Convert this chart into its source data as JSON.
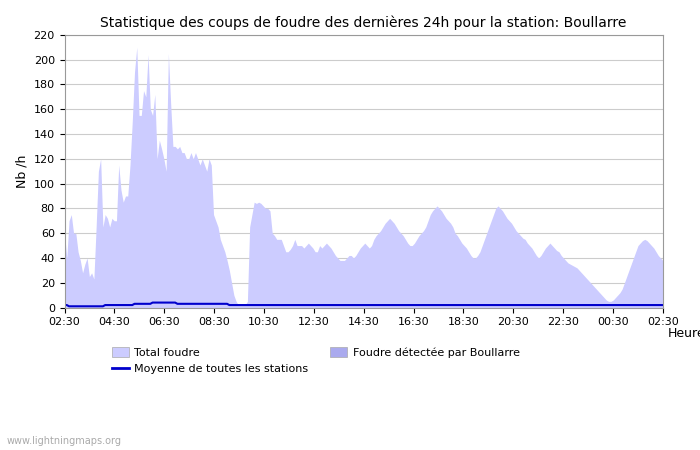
{
  "title": "Statistique des coups de foudre des dernières 24h pour la station: Boullarre",
  "xlabel": "Heure",
  "ylabel": "Nb /h",
  "watermark": "www.lightningmaps.org",
  "ylim": [
    0,
    220
  ],
  "yticks": [
    0,
    20,
    40,
    60,
    80,
    100,
    120,
    140,
    160,
    180,
    200,
    220
  ],
  "xtick_labels": [
    "02:30",
    "04:30",
    "06:30",
    "08:30",
    "10:30",
    "12:30",
    "14:30",
    "16:30",
    "18:30",
    "20:30",
    "22:30",
    "00:30",
    "02:30"
  ],
  "bg_color": "#ffffff",
  "plot_bg_color": "#ffffff",
  "grid_color": "#cccccc",
  "fill_total_color": "#ccccff",
  "fill_local_color": "#aaaaee",
  "line_color": "#0000cc",
  "legend_total": "Total foudre",
  "legend_local": "Foudre détectée par Boullarre",
  "legend_mean": "Moyenne de toutes les stations",
  "total_foudre": [
    60,
    40,
    70,
    75,
    60,
    60,
    45,
    38,
    28,
    35,
    40,
    25,
    28,
    23,
    65,
    110,
    120,
    65,
    75,
    72,
    65,
    72,
    70,
    70,
    115,
    95,
    85,
    90,
    90,
    115,
    150,
    190,
    210,
    155,
    155,
    175,
    170,
    204,
    160,
    155,
    172,
    120,
    135,
    128,
    120,
    110,
    205,
    165,
    130,
    130,
    128,
    130,
    125,
    125,
    120,
    120,
    125,
    120,
    125,
    120,
    115,
    120,
    115,
    110,
    120,
    115,
    75,
    70,
    65,
    55,
    50,
    45,
    38,
    30,
    20,
    10,
    5,
    2,
    2,
    2,
    2,
    5,
    65,
    75,
    85,
    84,
    85,
    84,
    82,
    80,
    80,
    78,
    60,
    58,
    55,
    55,
    55,
    50,
    45,
    45,
    47,
    50,
    55,
    50,
    50,
    50,
    48,
    50,
    52,
    50,
    48,
    45,
    45,
    50,
    48,
    50,
    52,
    50,
    48,
    45,
    42,
    40,
    38,
    38,
    38,
    40,
    42,
    42,
    40,
    42,
    45,
    48,
    50,
    52,
    50,
    48,
    50,
    55,
    58,
    60,
    62,
    65,
    68,
    70,
    72,
    70,
    68,
    65,
    62,
    60,
    58,
    55,
    52,
    50,
    50,
    52,
    55,
    58,
    60,
    62,
    65,
    70,
    75,
    78,
    80,
    82,
    80,
    78,
    75,
    72,
    70,
    68,
    65,
    60,
    58,
    55,
    52,
    50,
    48,
    45,
    42,
    40,
    40,
    42,
    45,
    50,
    55,
    60,
    65,
    70,
    75,
    80,
    82,
    80,
    78,
    75,
    72,
    70,
    68,
    65,
    62,
    60,
    58,
    56,
    55,
    52,
    50,
    48,
    45,
    42,
    40,
    42,
    45,
    48,
    50,
    52,
    50,
    48,
    46,
    45,
    42,
    40,
    38,
    36,
    35,
    34,
    33,
    32,
    30,
    28,
    26,
    24,
    22,
    20,
    18,
    16,
    14,
    12,
    10,
    8,
    6,
    5,
    5,
    6,
    8,
    10,
    12,
    15,
    20,
    25,
    30,
    35,
    40,
    45,
    50,
    52,
    54,
    55,
    54,
    52,
    50,
    48,
    45,
    42,
    40,
    38
  ],
  "local_foudre": [
    0,
    0,
    0,
    0,
    0,
    0,
    0,
    0,
    0,
    0,
    0,
    0,
    0,
    0,
    0,
    0,
    0,
    0,
    0,
    0,
    0,
    0,
    0,
    0,
    0,
    0,
    0,
    0,
    0,
    0,
    0,
    0,
    0,
    0,
    0,
    0,
    0,
    0,
    0,
    0,
    0,
    0,
    0,
    0,
    0,
    0,
    0,
    0,
    0,
    0,
    0,
    0,
    0,
    0,
    0,
    0,
    0,
    0,
    0,
    0,
    0,
    0,
    0,
    0,
    0,
    0,
    0,
    0,
    0,
    0,
    0,
    0,
    0,
    0,
    0,
    0,
    0,
    0,
    0,
    0,
    0,
    0,
    0,
    0,
    0,
    0,
    0,
    0,
    0,
    0,
    0,
    0,
    0,
    0,
    0,
    0,
    0,
    0,
    0,
    0,
    0,
    0,
    0,
    0,
    0,
    0,
    0,
    0,
    0,
    0,
    0,
    0,
    0,
    0,
    0,
    0,
    0,
    0,
    0,
    0,
    0,
    0,
    0,
    0,
    0,
    0,
    0,
    0,
    0,
    0,
    0,
    0,
    0,
    0,
    0,
    0,
    0,
    0,
    0,
    0,
    0,
    0,
    0,
    0,
    0,
    0,
    0,
    0,
    0,
    0,
    0,
    0,
    0,
    0,
    0,
    0,
    0,
    0,
    0,
    0,
    0,
    0,
    0,
    0,
    0,
    0,
    0,
    0,
    0,
    0,
    0,
    0,
    0,
    0,
    0,
    0,
    0,
    0,
    0,
    0,
    0,
    0,
    0,
    0,
    0,
    0,
    0,
    0,
    0,
    0,
    0,
    0,
    0,
    0,
    0,
    0,
    0,
    0,
    0,
    0,
    0,
    0,
    0,
    0,
    0,
    0,
    0,
    0,
    0,
    0,
    0,
    0,
    0,
    0,
    0,
    0,
    0,
    0,
    0,
    0,
    0,
    0,
    0,
    0,
    0,
    0,
    0,
    0,
    0,
    0,
    0,
    0,
    0,
    0,
    0,
    0,
    0,
    0,
    0,
    0,
    0,
    0,
    0,
    0,
    0,
    0,
    0,
    0,
    0,
    0,
    0,
    0,
    0,
    0,
    0,
    0,
    0,
    0,
    0,
    0,
    0,
    0,
    0,
    0,
    0,
    0
  ],
  "mean_line": [
    2,
    2,
    1,
    1,
    1,
    1,
    1,
    1,
    1,
    1,
    1,
    1,
    1,
    1,
    1,
    1,
    1,
    1,
    2,
    2,
    2,
    2,
    2,
    2,
    2,
    2,
    2,
    2,
    2,
    2,
    2,
    3,
    3,
    3,
    3,
    3,
    3,
    3,
    3,
    4,
    4,
    4,
    4,
    4,
    4,
    4,
    4,
    4,
    4,
    4,
    3,
    3,
    3,
    3,
    3,
    3,
    3,
    3,
    3,
    3,
    3,
    3,
    3,
    3,
    3,
    3,
    3,
    3,
    3,
    3,
    3,
    3,
    3,
    2,
    2,
    2,
    2,
    2,
    2,
    2,
    2,
    2,
    2,
    2,
    2,
    2,
    2,
    2,
    2,
    2,
    2,
    2,
    2,
    2,
    2,
    2,
    2,
    2,
    2,
    2,
    2,
    2,
    2,
    2,
    2,
    2,
    2,
    2,
    2,
    2,
    2,
    2,
    2,
    2,
    2,
    2,
    2,
    2,
    2,
    2,
    2,
    2,
    2,
    2,
    2,
    2,
    2,
    2,
    2,
    2,
    2,
    2,
    2,
    2,
    2,
    2,
    2,
    2,
    2,
    2,
    2,
    2,
    2,
    2,
    2,
    2,
    2,
    2,
    2,
    2,
    2,
    2,
    2,
    2,
    2,
    2,
    2,
    2,
    2,
    2,
    2,
    2,
    2,
    2,
    2,
    2,
    2,
    2,
    2,
    2,
    2,
    2,
    2,
    2,
    2,
    2,
    2,
    2,
    2,
    2,
    2,
    2,
    2,
    2,
    2,
    2,
    2,
    2,
    2,
    2,
    2,
    2,
    2,
    2,
    2,
    2,
    2,
    2,
    2,
    2,
    2,
    2,
    2,
    2,
    2,
    2,
    2,
    2,
    2,
    2,
    2,
    2,
    2,
    2,
    2,
    2,
    2,
    2,
    2,
    2,
    2,
    2,
    2,
    2,
    2,
    2,
    2,
    2,
    2,
    2,
    2,
    2,
    2,
    2,
    2,
    2,
    2,
    2,
    2,
    2,
    2,
    2,
    2,
    2,
    2,
    2,
    2,
    2,
    2,
    2,
    2,
    2,
    2,
    2,
    2,
    2,
    2,
    2,
    2,
    2,
    2,
    2,
    2,
    2,
    2,
    2
  ]
}
